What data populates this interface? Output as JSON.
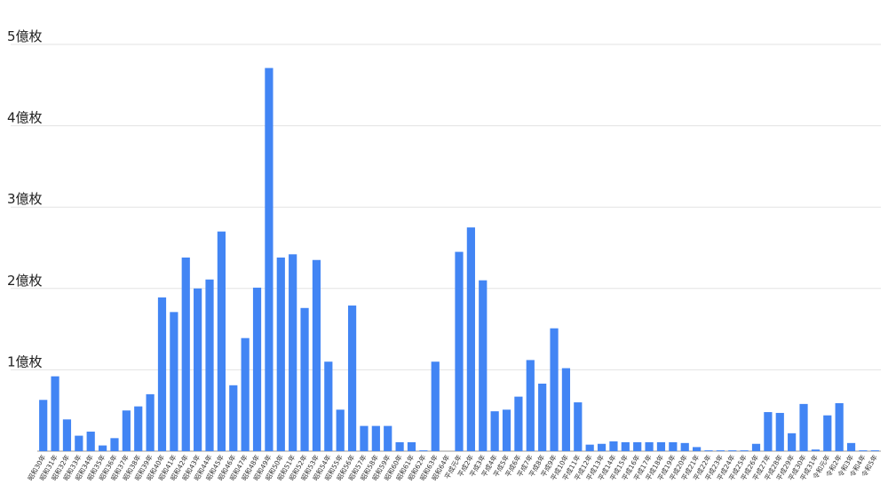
{
  "chart_data": {
    "type": "bar",
    "categories": [
      "昭和30年",
      "昭和31年",
      "昭和32年",
      "昭和33年",
      "昭和34年",
      "昭和35年",
      "昭和36年",
      "昭和37年",
      "昭和38年",
      "昭和39年",
      "昭和40年",
      "昭和41年",
      "昭和42年",
      "昭和43年",
      "昭和44年",
      "昭和45年",
      "昭和46年",
      "昭和47年",
      "昭和48年",
      "昭和49年",
      "昭和50年",
      "昭和51年",
      "昭和52年",
      "昭和53年",
      "昭和54年",
      "昭和55年",
      "昭和56年",
      "昭和57年",
      "昭和58年",
      "昭和59年",
      "昭和60年",
      "昭和61年",
      "昭和62年",
      "昭和63年",
      "昭和64年",
      "平成元年",
      "平成2年",
      "平成3年",
      "平成4年",
      "平成5年",
      "平成6年",
      "平成7年",
      "平成8年",
      "平成9年",
      "平成10年",
      "平成11年",
      "平成12年",
      "平成13年",
      "平成14年",
      "平成15年",
      "平成16年",
      "平成17年",
      "平成18年",
      "平成19年",
      "平成20年",
      "平成21年",
      "平成22年",
      "平成23年",
      "平成24年",
      "平成25年",
      "平成26年",
      "平成27年",
      "平成28年",
      "平成29年",
      "平成30年",
      "平成31年",
      "令和元年",
      "令和2年",
      "令和3年",
      "令和4年",
      "令和5年"
    ],
    "values": [
      0.63,
      0.92,
      0.39,
      0.19,
      0.24,
      0.07,
      0.16,
      0.5,
      0.55,
      0.7,
      1.89,
      1.71,
      2.38,
      2.0,
      2.11,
      2.7,
      0.81,
      1.39,
      2.01,
      4.71,
      2.38,
      2.42,
      1.76,
      2.35,
      1.1,
      0.51,
      1.79,
      0.31,
      0.31,
      0.31,
      0.11,
      0.11,
      0.01,
      1.1,
      0,
      2.45,
      2.75,
      2.1,
      0.49,
      0.51,
      0.67,
      1.12,
      0.83,
      1.51,
      1.02,
      0.6,
      0.08,
      0.09,
      0.12,
      0.11,
      0.11,
      0.11,
      0.11,
      0.11,
      0.1,
      0.05,
      0.01,
      0.01,
      0.01,
      0.01,
      0.09,
      0.48,
      0.47,
      0.22,
      0.58,
      0.02,
      0.44,
      0.59,
      0.1,
      0.01,
      0.01
    ],
    "color": "#4285f4",
    "ylim": [
      0,
      5
    ],
    "yticks": [
      {
        "value": 1,
        "label": "1億枚"
      },
      {
        "value": 2,
        "label": "2億枚"
      },
      {
        "value": 3,
        "label": "3億枚"
      },
      {
        "value": 4,
        "label": "4億枚"
      },
      {
        "value": 5,
        "label": "5億枚"
      }
    ],
    "grid": true
  }
}
